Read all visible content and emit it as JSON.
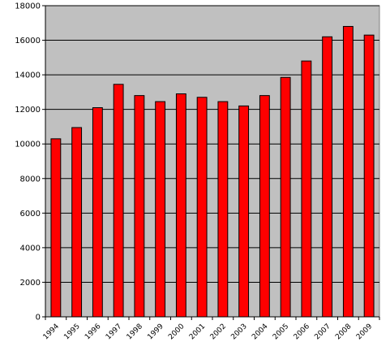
{
  "chart_data": {
    "type": "bar",
    "title": "",
    "xlabel": "",
    "ylabel": "",
    "categories": [
      "1994",
      "1995",
      "1996",
      "1997",
      "1998",
      "1999",
      "2000",
      "2001",
      "2002",
      "2003",
      "2004",
      "2005",
      "2006",
      "2007",
      "2008",
      "2009"
    ],
    "values": [
      10300,
      10950,
      12100,
      13450,
      12800,
      12450,
      12900,
      12700,
      12450,
      12200,
      12800,
      13850,
      14800,
      16200,
      16800,
      16300
    ],
    "ylim": [
      0,
      18000
    ],
    "yticks": [
      0,
      2000,
      4000,
      6000,
      8000,
      10000,
      12000,
      14000,
      16000,
      18000
    ],
    "ytick_labels": [
      "0",
      "2000",
      "4000",
      "6000",
      "8000",
      "10000",
      "12000",
      "14000",
      "16000",
      "18000"
    ],
    "grid": true,
    "legend": "none",
    "colors": {
      "bar_fill": "#ff0000",
      "bar_stroke": "#000000",
      "plot_background": "#c0c0c0",
      "gridline": "#000000"
    }
  }
}
